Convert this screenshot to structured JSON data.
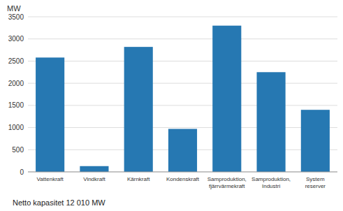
{
  "chart_data": {
    "type": "bar",
    "categories": [
      "Vattenkraft",
      "Vindkraft",
      "Kärnkraft",
      "Kondenskraft",
      "Samproduktion,\nfjärrvärmekraft",
      "Samproduktion,\nIndustri",
      "System\nreserver"
    ],
    "values": [
      2580,
      130,
      2820,
      970,
      3300,
      2250,
      1400
    ],
    "color": "#2678b2",
    "y_label": "MW",
    "annotations": [
      "Netto kapasitet 12 010 MW"
    ],
    "ylim": [
      0,
      3500
    ],
    "yticks": [
      0,
      500,
      1000,
      1500,
      2000,
      2500,
      3000,
      3500
    ],
    "grid": true
  }
}
